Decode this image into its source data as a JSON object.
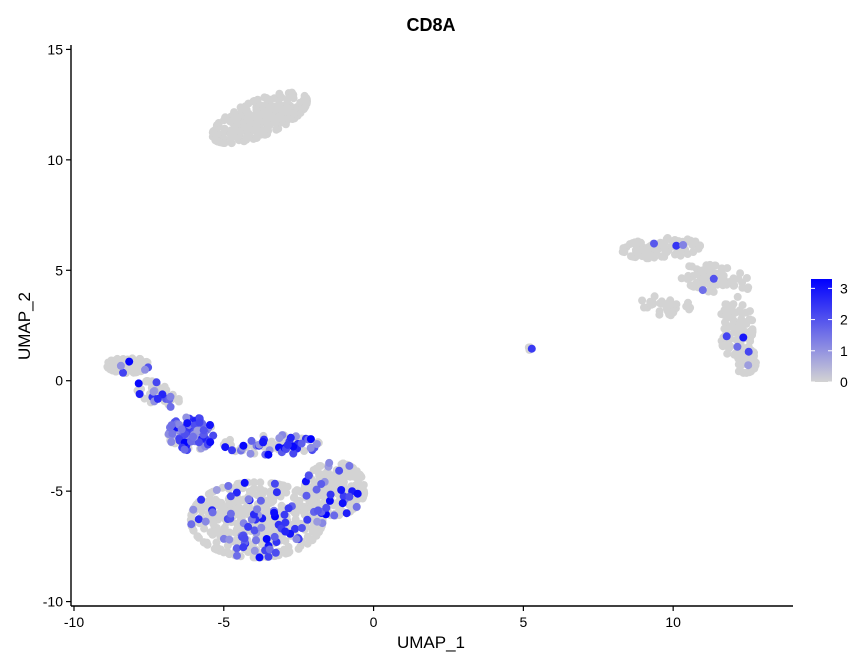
{
  "chart_data": {
    "type": "scatter",
    "title": "CD8A",
    "xlabel": "UMAP_1",
    "ylabel": "UMAP_2",
    "xlim": [
      -10.1,
      14
    ],
    "ylim": [
      -10.2,
      15.2
    ],
    "x_ticks": [
      -10,
      -5,
      0,
      5,
      10
    ],
    "x_tick_labels": [
      "-10",
      "-5",
      "0",
      "5",
      "10"
    ],
    "y_ticks": [
      -10,
      -5,
      0,
      5,
      10,
      15
    ],
    "y_tick_labels": [
      "-10",
      "-5",
      "0",
      "5",
      "10",
      "15"
    ],
    "grid": false,
    "legend": {
      "position": "right",
      "type": "colorbar",
      "min": 0,
      "max": 3.3,
      "ticks": [
        0,
        1,
        2,
        3
      ],
      "tick_labels": [
        "0",
        "1",
        "2",
        "3"
      ],
      "low_color": "#d3d3d3",
      "high_color": "#0000ff"
    },
    "clusters": [
      {
        "cx": -3.8,
        "cy": 11.9,
        "rx": 1.8,
        "ry": 0.75,
        "angle": 32,
        "n": 260,
        "expr_frac": 0.01
      },
      {
        "cx": 9.6,
        "cy": 6.0,
        "rx": 1.3,
        "ry": 0.45,
        "angle": 5,
        "n": 95,
        "expr_frac": 0.02
      },
      {
        "cx": 11.4,
        "cy": 4.6,
        "rx": 1.2,
        "ry": 0.6,
        "angle": -15,
        "n": 80,
        "expr_frac": 0.03
      },
      {
        "cx": 12.1,
        "cy": 2.4,
        "rx": 0.55,
        "ry": 1.4,
        "angle": 0,
        "n": 80,
        "expr_frac": 0.03
      },
      {
        "cx": 12.4,
        "cy": 0.9,
        "rx": 0.4,
        "ry": 0.55,
        "angle": 0,
        "n": 45,
        "expr_frac": 0.02
      },
      {
        "cx": 9.7,
        "cy": 3.4,
        "rx": 0.9,
        "ry": 0.45,
        "angle": 0,
        "n": 30,
        "expr_frac": 0.0
      },
      {
        "cx": -8.2,
        "cy": 0.7,
        "rx": 0.7,
        "ry": 0.35,
        "angle": 0,
        "n": 90,
        "expr_frac": 0.1
      },
      {
        "cx": -7.2,
        "cy": -0.6,
        "rx": 0.8,
        "ry": 0.45,
        "angle": -35,
        "n": 60,
        "expr_frac": 0.3
      },
      {
        "cx": -6.1,
        "cy": -2.4,
        "rx": 0.75,
        "ry": 0.75,
        "angle": 0,
        "n": 150,
        "expr_frac": 0.65
      },
      {
        "cx": -3.4,
        "cy": -2.9,
        "rx": 1.6,
        "ry": 0.45,
        "angle": 0,
        "n": 80,
        "expr_frac": 0.45
      },
      {
        "cx": -3.9,
        "cy": -6.3,
        "rx": 2.2,
        "ry": 1.7,
        "angle": 0,
        "n": 520,
        "expr_frac": 0.16
      },
      {
        "cx": -1.3,
        "cy": -4.9,
        "rx": 1.0,
        "ry": 1.2,
        "angle": 0,
        "n": 230,
        "expr_frac": 0.15
      },
      {
        "cx": 5.2,
        "cy": 1.45,
        "rx": 0.08,
        "ry": 0.06,
        "angle": 0,
        "n": 6,
        "expr_frac": 0.3
      }
    ]
  }
}
